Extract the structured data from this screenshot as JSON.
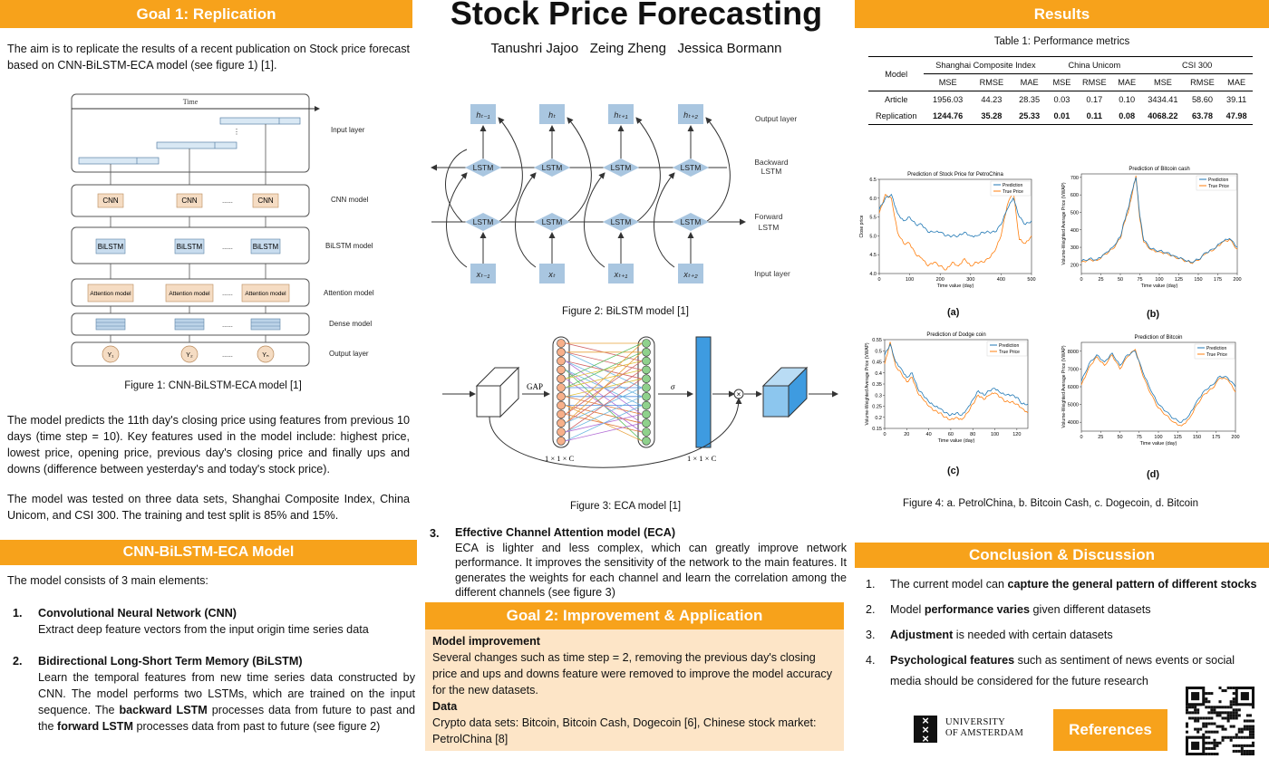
{
  "title": "Stock Price Forecasting",
  "authors": "Tanushri Jajoo   Zeing Zheng   Jessica Bormann",
  "goal1": {
    "header": "Goal 1: Replication",
    "intro": "The aim is to replicate the results of a recent publication on Stock price forecast based on CNN-BiLSTM-ECA model (see figure 1) [1].",
    "fig1_caption": "Figure 1: CNN-BiLSTM-ECA model [1]",
    "para2": "The model predicts the 11th day's closing price using features from previous 10 days (time step = 10). Key features used in the model include: highest price, lowest price, opening price, previous day's closing price and finally ups and downs (difference between yesterday's and today's stock price).",
    "para3": "The model was tested on three data sets, Shanghai Composite Index, China Unicom, and CSI 300. The training and test split is 85% and 15%."
  },
  "fig1": {
    "time": "Time",
    "layers": [
      "Input layer",
      "CNN model",
      "BiLSTM model",
      "Attention model",
      "Dense model",
      "Output layer"
    ],
    "cnn": "CNN",
    "bilstm": "BiLSTM",
    "attention": "Attention model",
    "dots": "......",
    "outputs": [
      "Y₁",
      "Y₂",
      "Yₙ"
    ]
  },
  "model": {
    "header": "CNN-BiLSTM-ECA Model",
    "intro": "The model consists of 3 main elements:",
    "items": [
      {
        "num": "1.",
        "title": "Convolutional Neural Network (CNN)",
        "text": "Extract deep feature vectors from the input origin time series data"
      },
      {
        "num": "2.",
        "title": "Bidirectional Long-Short Term Memory (BiLSTM)",
        "text_a": "Learn the temporal features from new time series data constructed by CNN. The model performs two LSTMs, which are trained on the input sequence. The ",
        "bold_a": "backward LSTM",
        "text_b": " processes data from future to past and the ",
        "bold_b": "forward LSTM",
        "text_c": " processes data from past to future (see figure 2)"
      },
      {
        "num": "3.",
        "title": "Effective Channel Attention model (ECA)",
        "text": "ECA is lighter and less complex, which can greatly improve network performance. It improves the sensitivity of the network to the main features. It generates the weights for each channel and learn the correlation among the different channels (see figure 3)"
      }
    ]
  },
  "fig2": {
    "caption": "Figure 2: BiLSTM model [1]",
    "output_layer": "Output layer",
    "backward": "Backward LSTM",
    "forward": "Forward LSTM",
    "input_layer": "Input layer",
    "lstm": "LSTM",
    "h_labels": [
      "hₜ₋₁",
      "hₜ",
      "hₜ₊₁",
      "hₜ₊₂"
    ],
    "x_labels": [
      "xₜ₋₁",
      "xₜ",
      "xₜ₊₁",
      "xₜ₊₂"
    ]
  },
  "fig3": {
    "caption": "Figure 3: ECA model [1]",
    "gap": "GAP",
    "sigma": "σ",
    "dim": "1 × 1 × C"
  },
  "goal2": {
    "header": "Goal 2: Improvement & Application",
    "h1": "Model improvement",
    "t1": "Several changes such as time step = 2, removing the previous day's closing price and ups and downs feature were removed to improve the model accuracy for the new datasets.",
    "h2": "Data",
    "t2": "Crypto data sets: Bitcoin, Bitcoin Cash, Dogecoin [6], Chinese stock market: PetrolChina [8]"
  },
  "results": {
    "header": "Results",
    "table_caption": "Table 1: Performance metrics",
    "col_model": "Model",
    "groups": [
      "Shanghai Composite Index",
      "China Unicom",
      "CSI 300"
    ],
    "metrics": [
      "MSE",
      "RMSE",
      "MAE"
    ],
    "rows": [
      {
        "label": "Article",
        "values": [
          "1956.03",
          "44.23",
          "28.35",
          "0.03",
          "0.17",
          "0.10",
          "3434.41",
          "58.60",
          "39.11"
        ]
      },
      {
        "label": "Replication",
        "values": [
          "1244.76",
          "35.28",
          "25.33",
          "0.01",
          "0.11",
          "0.08",
          "4068.22",
          "63.78",
          "47.98"
        ]
      }
    ],
    "fig4_caption": "Figure 4: a. PetrolChina, b. Bitcoin Cash, c. Dogecoin, d. Bitcoin",
    "legend_pred": "Prediction",
    "legend_true": "True Price",
    "colors": {
      "prediction": "#1f77b4",
      "true": "#ff7f0e"
    }
  },
  "chart_data": [
    {
      "type": "line",
      "panel": "(a)",
      "title": "Prediction of Stock Price for PetroChina",
      "xlabel": "Time value (day)",
      "ylabel": "Close price",
      "xlim": [
        0,
        500
      ],
      "ylim": [
        4.0,
        6.5
      ],
      "xticks": [
        0,
        100,
        200,
        300,
        400,
        500
      ],
      "yticks": [
        4.0,
        4.5,
        5.0,
        5.5,
        6.0,
        6.5
      ],
      "x": [
        0,
        20,
        40,
        60,
        80,
        100,
        120,
        140,
        160,
        180,
        200,
        220,
        240,
        260,
        280,
        300,
        320,
        340,
        360,
        380,
        400,
        420,
        440,
        460,
        480,
        500
      ],
      "series": [
        {
          "name": "Prediction",
          "values": [
            5.7,
            6.0,
            6.1,
            5.6,
            5.4,
            5.5,
            5.3,
            5.3,
            5.1,
            5.1,
            5.1,
            5.0,
            5.0,
            5.0,
            5.1,
            5.0,
            5.0,
            5.1,
            5.1,
            5.1,
            5.3,
            5.7,
            6.0,
            5.5,
            5.3,
            5.4
          ]
        },
        {
          "name": "True Price",
          "values": [
            5.6,
            6.1,
            6.0,
            5.1,
            4.8,
            4.8,
            4.5,
            4.4,
            4.2,
            4.3,
            4.2,
            4.1,
            4.3,
            4.2,
            4.4,
            4.2,
            4.3,
            4.3,
            4.4,
            4.6,
            5.0,
            5.8,
            6.2,
            4.9,
            4.8,
            5.0
          ]
        }
      ]
    },
    {
      "type": "line",
      "panel": "(b)",
      "title": "Prediction of Bitcoin cash",
      "xlabel": "Time value (day)",
      "ylabel": "Volume-Weighted Average Price (VWAP)",
      "xlim": [
        0,
        200
      ],
      "ylim": [
        150,
        720
      ],
      "xticks": [
        0,
        25,
        50,
        75,
        100,
        125,
        150,
        175,
        200
      ],
      "yticks": [
        200,
        300,
        400,
        500,
        600,
        700
      ],
      "x": [
        0,
        10,
        20,
        30,
        40,
        50,
        55,
        60,
        65,
        70,
        75,
        80,
        90,
        100,
        110,
        120,
        130,
        140,
        150,
        160,
        170,
        180,
        190,
        200
      ],
      "series": [
        {
          "name": "Prediction",
          "values": [
            220,
            235,
            230,
            265,
            300,
            360,
            450,
            520,
            620,
            700,
            480,
            340,
            290,
            280,
            270,
            250,
            235,
            215,
            230,
            270,
            290,
            330,
            350,
            300
          ]
        },
        {
          "name": "True Price",
          "values": [
            215,
            230,
            225,
            260,
            290,
            350,
            440,
            500,
            600,
            710,
            460,
            330,
            285,
            275,
            265,
            245,
            230,
            210,
            225,
            265,
            285,
            325,
            345,
            290
          ]
        }
      ]
    },
    {
      "type": "line",
      "panel": "(c)",
      "title": "Prediction of Dodge coin",
      "xlabel": "Time value (day)",
      "ylabel": "Volume-Weighted Average Price (VWAP)",
      "xlim": [
        0,
        130
      ],
      "ylim": [
        0.15,
        0.55
      ],
      "xticks": [
        0,
        20,
        40,
        60,
        80,
        100,
        120
      ],
      "yticks": [
        0.15,
        0.2,
        0.25,
        0.3,
        0.35,
        0.4,
        0.45,
        0.5,
        0.55
      ],
      "x": [
        0,
        5,
        10,
        15,
        20,
        25,
        30,
        35,
        40,
        45,
        50,
        55,
        60,
        65,
        70,
        75,
        80,
        85,
        90,
        95,
        100,
        105,
        110,
        115,
        120,
        125,
        130
      ],
      "series": [
        {
          "name": "Prediction",
          "values": [
            0.48,
            0.53,
            0.45,
            0.42,
            0.38,
            0.4,
            0.33,
            0.3,
            0.27,
            0.25,
            0.24,
            0.22,
            0.21,
            0.22,
            0.21,
            0.24,
            0.28,
            0.32,
            0.3,
            0.32,
            0.33,
            0.31,
            0.3,
            0.3,
            0.29,
            0.26,
            0.26
          ]
        },
        {
          "name": "True Price",
          "values": [
            0.44,
            0.54,
            0.43,
            0.4,
            0.36,
            0.38,
            0.31,
            0.28,
            0.25,
            0.23,
            0.22,
            0.2,
            0.19,
            0.2,
            0.19,
            0.22,
            0.26,
            0.3,
            0.28,
            0.3,
            0.31,
            0.29,
            0.27,
            0.27,
            0.26,
            0.24,
            0.22
          ]
        }
      ]
    },
    {
      "type": "line",
      "panel": "(d)",
      "title": "Prediction of Bitcoin",
      "xlabel": "Time value (day)",
      "ylabel": "Volume-Weighted Average Price (VWAP)",
      "xlim": [
        0,
        200
      ],
      "ylim": [
        3500,
        8500
      ],
      "xticks": [
        0,
        25,
        50,
        75,
        100,
        125,
        150,
        175,
        200
      ],
      "yticks": [
        4000,
        5000,
        6000,
        7000,
        8000
      ],
      "x": [
        0,
        10,
        20,
        30,
        40,
        50,
        60,
        70,
        80,
        90,
        100,
        110,
        120,
        130,
        140,
        150,
        160,
        170,
        180,
        190,
        200
      ],
      "series": [
        {
          "name": "Prediction",
          "values": [
            6300,
            7300,
            7800,
            7400,
            7900,
            7200,
            7800,
            8000,
            6800,
            5800,
            5000,
            4600,
            4200,
            4000,
            4400,
            5200,
            5800,
            6100,
            6600,
            6500,
            6000
          ]
        },
        {
          "name": "True Price",
          "values": [
            6100,
            7100,
            7700,
            7200,
            7800,
            7000,
            7700,
            8100,
            6600,
            5600,
            4800,
            4400,
            4000,
            3800,
            4200,
            5000,
            5600,
            5900,
            6500,
            6400,
            5700
          ]
        }
      ]
    }
  ],
  "panel_labels": [
    "(a)",
    "(b)",
    "(c)",
    "(d)"
  ],
  "conclusion": {
    "header": "Conclusion & Discussion",
    "items": [
      {
        "num": "1.",
        "a": "The current model can ",
        "b": "capture the general pattern of different stocks",
        "c": ""
      },
      {
        "num": "2.",
        "a": "Model ",
        "b": "performance varies",
        "c": " given different datasets"
      },
      {
        "num": "3.",
        "a": "",
        "b": "Adjustment",
        "c": " is needed with certain datasets"
      },
      {
        "num": "4.",
        "a": "",
        "b": "Psychological features",
        "c": "  such as sentiment of news events or social media should be considered for the future research"
      }
    ]
  },
  "footer": {
    "university_line1": "UNIVERSITY",
    "university_line2": "OF AMSTERDAM",
    "references": "References"
  }
}
